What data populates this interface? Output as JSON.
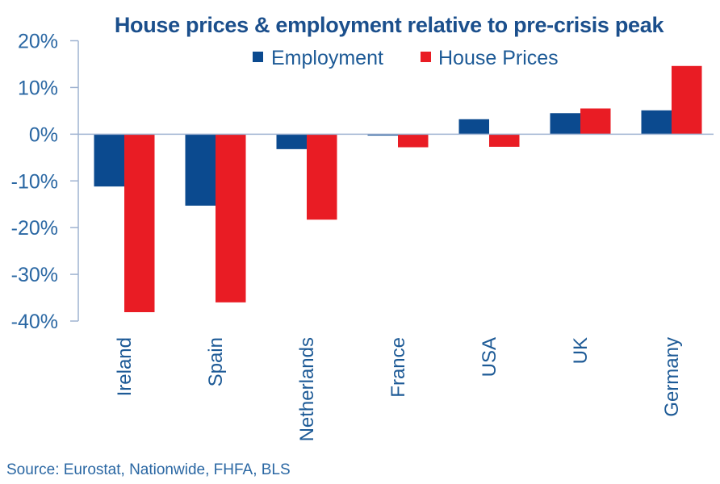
{
  "chart_data": {
    "type": "bar",
    "title": "House prices & employment relative to pre-crisis peak",
    "xlabel": "",
    "ylabel": "",
    "categories": [
      "Ireland",
      "Spain",
      "Netherlands",
      "France",
      "USA",
      "UK",
      "Germany"
    ],
    "series": [
      {
        "name": "Employment",
        "color": "#0b4a8f",
        "values": [
          -11.2,
          -15.3,
          -3.2,
          -0.3,
          3.2,
          4.5,
          5.1
        ]
      },
      {
        "name": "House Prices",
        "color": "#e91c24",
        "values": [
          -38.1,
          -36.0,
          -18.3,
          -2.8,
          -2.7,
          5.5,
          14.6
        ]
      }
    ],
    "ylim": [
      -40,
      20
    ],
    "yticks": [
      20,
      10,
      0,
      -10,
      -20,
      -30,
      -40
    ],
    "ytick_labels": [
      "20%",
      "10%",
      "0%",
      "-10%",
      "-20%",
      "-30%",
      "-40%"
    ],
    "grid": false,
    "legend_position": "top-center",
    "source": "Source: Eurostat, Nationwide, FHFA, BLS"
  },
  "colors": {
    "text": "#1d5a96",
    "title": "#1b4f8c",
    "axis": "#9fb3d1"
  }
}
